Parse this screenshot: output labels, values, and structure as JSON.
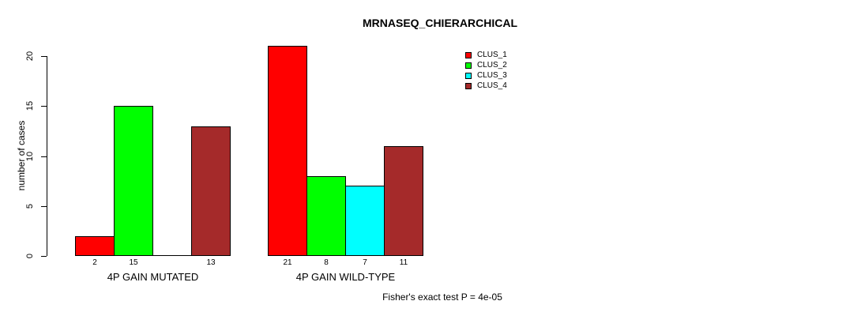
{
  "chart_data": {
    "type": "bar",
    "title": "MRNASEQ_CHIERARCHICAL",
    "ylabel": "number of cases",
    "xlabel": "",
    "categories": [
      "4P GAIN MUTATED",
      "4P GAIN WILD-TYPE"
    ],
    "series": [
      {
        "name": "CLUS_1",
        "color": "#ff0000",
        "values": [
          2,
          21
        ]
      },
      {
        "name": "CLUS_2",
        "color": "#00ff00",
        "values": [
          15,
          8
        ]
      },
      {
        "name": "CLUS_3",
        "color": "#00ffff",
        "values": [
          0,
          7
        ]
      },
      {
        "name": "CLUS_4",
        "color": "#a52a2a",
        "values": [
          13,
          11
        ]
      }
    ],
    "yticks": [
      0,
      5,
      10,
      15,
      20
    ],
    "ylim": [
      0,
      21
    ],
    "grid": false,
    "legend_position": "top-right",
    "legend_entries": [
      "CLUS_1",
      "CLUS_2",
      "CLUS_3",
      "CLUS_4"
    ],
    "bar_value_labels": {
      "shown": true,
      "zero_values_hidden": true,
      "group1": [
        "2",
        "15",
        "13"
      ],
      "group2": [
        "21",
        "8",
        "7",
        "11"
      ]
    },
    "annotation": "Fisher's exact test P = 4e-05"
  }
}
